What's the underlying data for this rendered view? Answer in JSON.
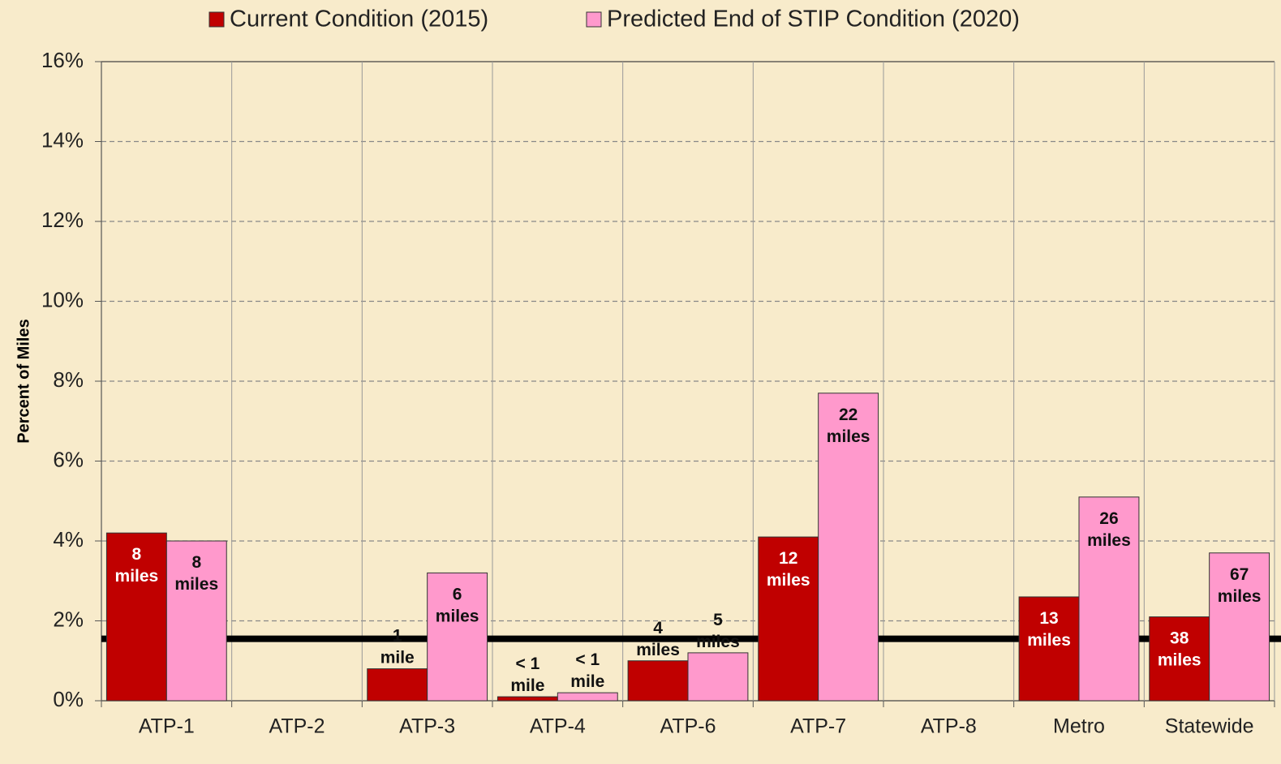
{
  "chart_data": {
    "type": "bar",
    "y_label": "Percent of Miles",
    "categories": [
      "ATP-1",
      "ATP-2",
      "ATP-3",
      "ATP-4",
      "ATP-6",
      "ATP-7",
      "ATP-8",
      "Metro",
      "Statewide"
    ],
    "series": [
      {
        "name": "Current Condition (2015)",
        "color": "#c00000",
        "values": [
          4.2,
          null,
          0.8,
          0.1,
          1.0,
          4.1,
          null,
          2.6,
          2.1
        ],
        "value_labels": [
          "8 miles",
          null,
          "1 mile",
          "< 1 mile",
          "4 miles",
          "12 miles",
          null,
          "13 miles",
          "38 miles"
        ]
      },
      {
        "name": "Predicted End of STIP Condition (2020)",
        "color": "#ff99cc",
        "values": [
          4.0,
          null,
          3.2,
          0.2,
          1.2,
          7.7,
          null,
          5.1,
          3.7
        ],
        "value_labels": [
          "8 miles",
          null,
          "6 miles",
          "< 1 mile",
          "5 miles",
          "22 miles",
          null,
          "26 miles",
          "67 miles"
        ]
      }
    ],
    "ylim": [
      0,
      16
    ],
    "yticks": [
      {
        "value": 0,
        "label": "0%"
      },
      {
        "value": 2,
        "label": "2%"
      },
      {
        "value": 4,
        "label": "4%"
      },
      {
        "value": 6,
        "label": "6%"
      },
      {
        "value": 8,
        "label": "8%"
      },
      {
        "value": 10,
        "label": "10%"
      },
      {
        "value": 12,
        "label": "12%"
      },
      {
        "value": 14,
        "label": "14%"
      },
      {
        "value": 16,
        "label": "16%"
      }
    ],
    "reference_line": 1.55,
    "grid": true
  }
}
